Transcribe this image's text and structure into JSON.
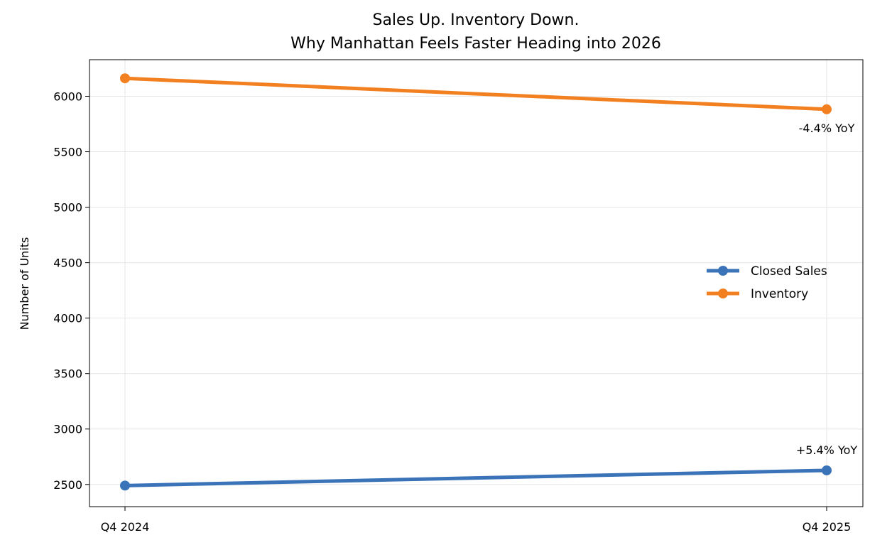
{
  "chart_data": {
    "type": "line",
    "title": [
      "Sales Up. Inventory Down.",
      "Why Manhattan Feels Faster Heading into 2026"
    ],
    "xlabel": "",
    "ylabel": "Number of Units",
    "categories": [
      "Q4 2024",
      "Q4 2025"
    ],
    "ylim": [
      2300,
      6330
    ],
    "yticks": [
      2500,
      3000,
      3500,
      4000,
      4500,
      5000,
      5500,
      6000
    ],
    "grid": true,
    "legend_position": "center-right",
    "series": [
      {
        "name": "Closed Sales",
        "values": [
          2490,
          2627
        ],
        "color": "#3a73b8",
        "annotation": "+5.4% YoY"
      },
      {
        "name": "Inventory",
        "values": [
          6162,
          5883
        ],
        "color": "#f28021",
        "annotation": "-4.4% YoY"
      }
    ]
  }
}
